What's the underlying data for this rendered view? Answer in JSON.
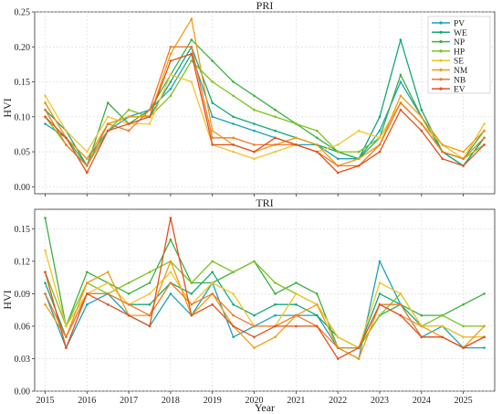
{
  "chart_data": [
    {
      "type": "line",
      "title": "PRI",
      "ylabel": "HVI",
      "xlabel": "",
      "xlim": [
        2014.75,
        2025.75
      ],
      "ylim": [
        -0.01,
        0.25
      ],
      "yticks": [
        0.0,
        0.05,
        0.1,
        0.15,
        0.2,
        0.25
      ],
      "ytick_labels": [
        "0.00",
        "0.05",
        "0.10",
        "0.15",
        "0.20",
        "0.25"
      ],
      "grid": true,
      "legend_position": "top-right",
      "series": [
        {
          "name": "PV",
          "color": "#1aa3b8",
          "x": [
            2015.0,
            2015.5,
            2016.0,
            2016.5,
            2017.0,
            2017.5,
            2018.0,
            2018.5,
            2019.0,
            2019.5,
            2020.0,
            2020.5,
            2021.0,
            2021.5,
            2022.0,
            2022.5,
            2023.0,
            2023.5,
            2024.0,
            2024.5,
            2025.0,
            2025.5
          ],
          "y": [
            0.09,
            0.07,
            0.04,
            0.08,
            0.1,
            0.11,
            0.14,
            0.19,
            0.1,
            0.09,
            0.08,
            0.07,
            0.06,
            0.06,
            0.04,
            0.04,
            0.08,
            0.15,
            0.1,
            0.05,
            0.03,
            0.07
          ]
        },
        {
          "name": "WE",
          "color": "#15a879",
          "x": [
            2015.0,
            2015.5,
            2016.0,
            2016.5,
            2017.0,
            2017.5,
            2018.0,
            2018.5,
            2019.0,
            2019.5,
            2020.0,
            2020.5,
            2021.0,
            2021.5,
            2022.0,
            2022.5,
            2023.0,
            2023.5,
            2024.0,
            2024.5,
            2025.0,
            2025.5
          ],
          "y": [
            0.11,
            0.08,
            0.03,
            0.09,
            0.1,
            0.1,
            0.15,
            0.2,
            0.12,
            0.1,
            0.09,
            0.08,
            0.07,
            0.06,
            0.05,
            0.04,
            0.1,
            0.21,
            0.11,
            0.05,
            0.03,
            0.07
          ]
        },
        {
          "name": "NP",
          "color": "#3cb043",
          "x": [
            2015.0,
            2015.5,
            2016.0,
            2016.5,
            2017.0,
            2017.5,
            2018.0,
            2018.5,
            2019.0,
            2019.5,
            2020.0,
            2020.5,
            2021.0,
            2021.5,
            2022.0,
            2022.5,
            2023.0,
            2023.5,
            2024.0,
            2024.5,
            2025.0,
            2025.5
          ],
          "y": [
            0.12,
            0.07,
            0.03,
            0.12,
            0.09,
            0.11,
            0.16,
            0.21,
            0.18,
            0.15,
            0.13,
            0.11,
            0.09,
            0.07,
            0.05,
            0.04,
            0.07,
            0.16,
            0.1,
            0.05,
            0.04,
            0.08
          ]
        },
        {
          "name": "HP",
          "color": "#7dc21e",
          "x": [
            2015.0,
            2015.5,
            2016.0,
            2016.5,
            2017.0,
            2017.5,
            2018.0,
            2018.5,
            2019.0,
            2019.5,
            2020.0,
            2020.5,
            2021.0,
            2021.5,
            2022.0,
            2022.5,
            2023.0,
            2023.5,
            2024.0,
            2024.5,
            2025.0,
            2025.5
          ],
          "y": [
            0.1,
            0.06,
            0.03,
            0.08,
            0.11,
            0.1,
            0.13,
            0.18,
            0.15,
            0.13,
            0.11,
            0.1,
            0.09,
            0.08,
            0.05,
            0.05,
            0.07,
            0.12,
            0.09,
            0.05,
            0.04,
            0.06
          ]
        },
        {
          "name": "SE",
          "color": "#f2c42a",
          "x": [
            2015.0,
            2015.5,
            2016.0,
            2016.5,
            2017.0,
            2017.5,
            2018.0,
            2018.5,
            2019.0,
            2019.5,
            2020.0,
            2020.5,
            2021.0,
            2021.5,
            2022.0,
            2022.5,
            2023.0,
            2023.5,
            2024.0,
            2024.5,
            2025.0,
            2025.5
          ],
          "y": [
            0.13,
            0.08,
            0.05,
            0.1,
            0.09,
            0.09,
            0.16,
            0.15,
            0.06,
            0.05,
            0.04,
            0.05,
            0.06,
            0.05,
            0.06,
            0.08,
            0.07,
            0.12,
            0.09,
            0.06,
            0.04,
            0.09
          ]
        },
        {
          "name": "NM",
          "color": "#f39a13",
          "x": [
            2015.0,
            2015.5,
            2016.0,
            2016.5,
            2017.0,
            2017.5,
            2018.0,
            2018.5,
            2019.0,
            2019.5,
            2020.0,
            2020.5,
            2021.0,
            2021.5,
            2022.0,
            2022.5,
            2023.0,
            2023.5,
            2024.0,
            2024.5,
            2025.0,
            2025.5
          ],
          "y": [
            0.12,
            0.07,
            0.04,
            0.09,
            0.1,
            0.1,
            0.19,
            0.24,
            0.08,
            0.06,
            0.05,
            0.06,
            0.07,
            0.06,
            0.03,
            0.04,
            0.06,
            0.13,
            0.1,
            0.06,
            0.05,
            0.08
          ]
        },
        {
          "name": "NB",
          "color": "#ee7a2a",
          "x": [
            2015.0,
            2015.5,
            2016.0,
            2016.5,
            2017.0,
            2017.5,
            2018.0,
            2018.5,
            2019.0,
            2019.5,
            2020.0,
            2020.5,
            2021.0,
            2021.5,
            2022.0,
            2022.5,
            2023.0,
            2023.5,
            2024.0,
            2024.5,
            2025.0,
            2025.5
          ],
          "y": [
            0.11,
            0.06,
            0.03,
            0.09,
            0.08,
            0.11,
            0.2,
            0.2,
            0.07,
            0.07,
            0.06,
            0.06,
            0.06,
            0.05,
            0.03,
            0.03,
            0.06,
            0.12,
            0.09,
            0.05,
            0.04,
            0.07
          ]
        },
        {
          "name": "EV",
          "color": "#e2501e",
          "x": [
            2015.0,
            2015.5,
            2016.0,
            2016.5,
            2017.0,
            2017.5,
            2018.0,
            2018.5,
            2019.0,
            2019.5,
            2020.0,
            2020.5,
            2021.0,
            2021.5,
            2022.0,
            2022.5,
            2023.0,
            2023.5,
            2024.0,
            2024.5,
            2025.0,
            2025.5
          ],
          "y": [
            0.1,
            0.07,
            0.02,
            0.08,
            0.09,
            0.1,
            0.18,
            0.19,
            0.06,
            0.06,
            0.05,
            0.07,
            0.06,
            0.05,
            0.02,
            0.03,
            0.05,
            0.11,
            0.08,
            0.04,
            0.03,
            0.06
          ]
        }
      ]
    },
    {
      "type": "line",
      "title": "TRI",
      "ylabel": "HVI",
      "xlabel": "Year",
      "xlim": [
        2014.75,
        2025.75
      ],
      "ylim": [
        0.0,
        0.168
      ],
      "yticks": [
        0.0,
        0.03,
        0.06,
        0.09,
        0.12,
        0.15
      ],
      "ytick_labels": [
        "0.00",
        "0.03",
        "0.06",
        "0.09",
        "0.12",
        "0.15"
      ],
      "xticks": [
        2015,
        2016,
        2017,
        2018,
        2019,
        2020,
        2021,
        2022,
        2023,
        2024,
        2025
      ],
      "xtick_labels": [
        "2015",
        "2016",
        "2017",
        "2018",
        "2019",
        "2020",
        "2021",
        "2022",
        "2023",
        "2024",
        "2025"
      ],
      "grid": true,
      "series": [
        {
          "name": "PV",
          "color": "#1aa3b8",
          "x": [
            2015.0,
            2015.5,
            2016.0,
            2016.5,
            2017.0,
            2017.5,
            2018.0,
            2018.5,
            2019.0,
            2019.5,
            2020.0,
            2020.5,
            2021.0,
            2021.5,
            2022.0,
            2022.5,
            2023.0,
            2023.5,
            2024.0,
            2024.5,
            2025.0,
            2025.5
          ],
          "y": [
            0.09,
            0.04,
            0.08,
            0.09,
            0.07,
            0.06,
            0.09,
            0.07,
            0.1,
            0.05,
            0.06,
            0.07,
            0.07,
            0.07,
            0.04,
            0.03,
            0.12,
            0.08,
            0.05,
            0.06,
            0.04,
            0.04
          ]
        },
        {
          "name": "WE",
          "color": "#15a879",
          "x": [
            2015.0,
            2015.5,
            2016.0,
            2016.5,
            2017.0,
            2017.5,
            2018.0,
            2018.5,
            2019.0,
            2019.5,
            2020.0,
            2020.5,
            2021.0,
            2021.5,
            2022.0,
            2022.5,
            2023.0,
            2023.5,
            2024.0,
            2024.5,
            2025.0,
            2025.5
          ],
          "y": [
            0.1,
            0.05,
            0.09,
            0.09,
            0.08,
            0.08,
            0.1,
            0.09,
            0.11,
            0.08,
            0.07,
            0.08,
            0.08,
            0.07,
            0.05,
            0.04,
            0.09,
            0.08,
            0.06,
            0.06,
            0.05,
            0.05
          ]
        },
        {
          "name": "NP",
          "color": "#3cb043",
          "x": [
            2015.0,
            2015.5,
            2016.0,
            2016.5,
            2017.0,
            2017.5,
            2018.0,
            2018.5,
            2019.0,
            2019.5,
            2020.0,
            2020.5,
            2021.0,
            2021.5,
            2022.0,
            2022.5,
            2023.0,
            2023.5,
            2024.0,
            2024.5,
            2025.0,
            2025.5
          ],
          "y": [
            0.16,
            0.06,
            0.11,
            0.1,
            0.09,
            0.1,
            0.14,
            0.1,
            0.1,
            0.11,
            0.12,
            0.09,
            0.1,
            0.09,
            0.04,
            0.04,
            0.07,
            0.08,
            0.07,
            0.07,
            0.08,
            0.09
          ]
        },
        {
          "name": "HP",
          "color": "#7dc21e",
          "x": [
            2015.0,
            2015.5,
            2016.0,
            2016.5,
            2017.0,
            2017.5,
            2018.0,
            2018.5,
            2019.0,
            2019.5,
            2020.0,
            2020.5,
            2021.0,
            2021.5,
            2022.0,
            2022.5,
            2023.0,
            2023.5,
            2024.0,
            2024.5,
            2025.0,
            2025.5
          ],
          "y": [
            0.11,
            0.06,
            0.1,
            0.09,
            0.1,
            0.11,
            0.12,
            0.1,
            0.12,
            0.11,
            0.12,
            0.1,
            0.09,
            0.08,
            0.05,
            0.04,
            0.07,
            0.09,
            0.06,
            0.07,
            0.06,
            0.06
          ]
        },
        {
          "name": "SE",
          "color": "#f2c42a",
          "x": [
            2015.0,
            2015.5,
            2016.0,
            2016.5,
            2017.0,
            2017.5,
            2018.0,
            2018.5,
            2019.0,
            2019.5,
            2020.0,
            2020.5,
            2021.0,
            2021.5,
            2022.0,
            2022.5,
            2023.0,
            2023.5,
            2024.0,
            2024.5,
            2025.0,
            2025.5
          ],
          "y": [
            0.13,
            0.06,
            0.09,
            0.1,
            0.08,
            0.09,
            0.11,
            0.08,
            0.1,
            0.09,
            0.06,
            0.06,
            0.09,
            0.08,
            0.05,
            0.04,
            0.1,
            0.09,
            0.06,
            0.06,
            0.05,
            0.05
          ]
        },
        {
          "name": "NM",
          "color": "#f39a13",
          "x": [
            2015.0,
            2015.5,
            2016.0,
            2016.5,
            2017.0,
            2017.5,
            2018.0,
            2018.5,
            2019.0,
            2019.5,
            2020.0,
            2020.5,
            2021.0,
            2021.5,
            2022.0,
            2022.5,
            2023.0,
            2023.5,
            2024.0,
            2024.5,
            2025.0,
            2025.5
          ],
          "y": [
            0.08,
            0.05,
            0.1,
            0.11,
            0.07,
            0.07,
            0.12,
            0.07,
            0.09,
            0.06,
            0.04,
            0.05,
            0.07,
            0.08,
            0.04,
            0.03,
            0.08,
            0.07,
            0.06,
            0.05,
            0.04,
            0.06
          ]
        },
        {
          "name": "NB",
          "color": "#ee7a2a",
          "x": [
            2015.0,
            2015.5,
            2016.0,
            2016.5,
            2017.0,
            2017.5,
            2018.0,
            2018.5,
            2019.0,
            2019.5,
            2020.0,
            2020.5,
            2021.0,
            2021.5,
            2022.0,
            2022.5,
            2023.0,
            2023.5,
            2024.0,
            2024.5,
            2025.0,
            2025.5
          ],
          "y": [
            0.09,
            0.05,
            0.09,
            0.09,
            0.08,
            0.07,
            0.1,
            0.08,
            0.09,
            0.07,
            0.06,
            0.06,
            0.07,
            0.06,
            0.04,
            0.04,
            0.08,
            0.08,
            0.05,
            0.05,
            0.04,
            0.05
          ]
        },
        {
          "name": "EV",
          "color": "#e2501e",
          "x": [
            2015.0,
            2015.5,
            2016.0,
            2016.5,
            2017.0,
            2017.5,
            2018.0,
            2018.5,
            2019.0,
            2019.5,
            2020.0,
            2020.5,
            2021.0,
            2021.5,
            2022.0,
            2022.5,
            2023.0,
            2023.5,
            2024.0,
            2024.5,
            2025.0,
            2025.5
          ],
          "y": [
            0.11,
            0.04,
            0.09,
            0.08,
            0.07,
            0.06,
            0.16,
            0.07,
            0.08,
            0.06,
            0.05,
            0.06,
            0.06,
            0.06,
            0.03,
            0.04,
            0.08,
            0.07,
            0.05,
            0.05,
            0.04,
            0.05
          ]
        }
      ]
    }
  ]
}
